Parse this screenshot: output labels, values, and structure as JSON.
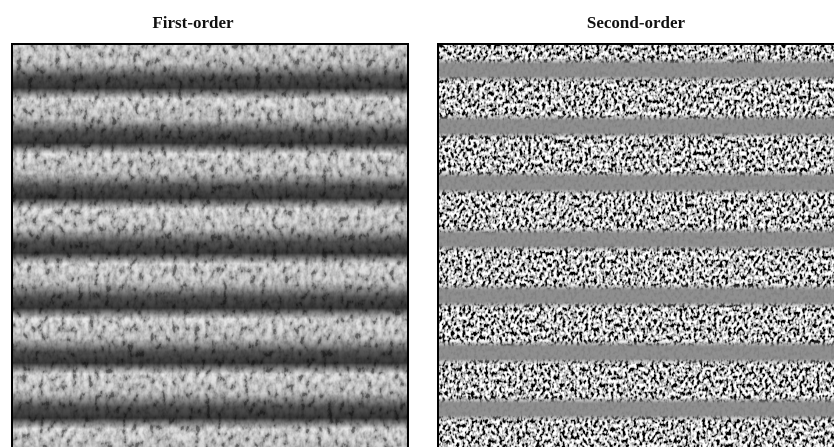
{
  "panels": [
    {
      "title": "First-order"
    },
    {
      "title": "Second-order"
    }
  ]
}
